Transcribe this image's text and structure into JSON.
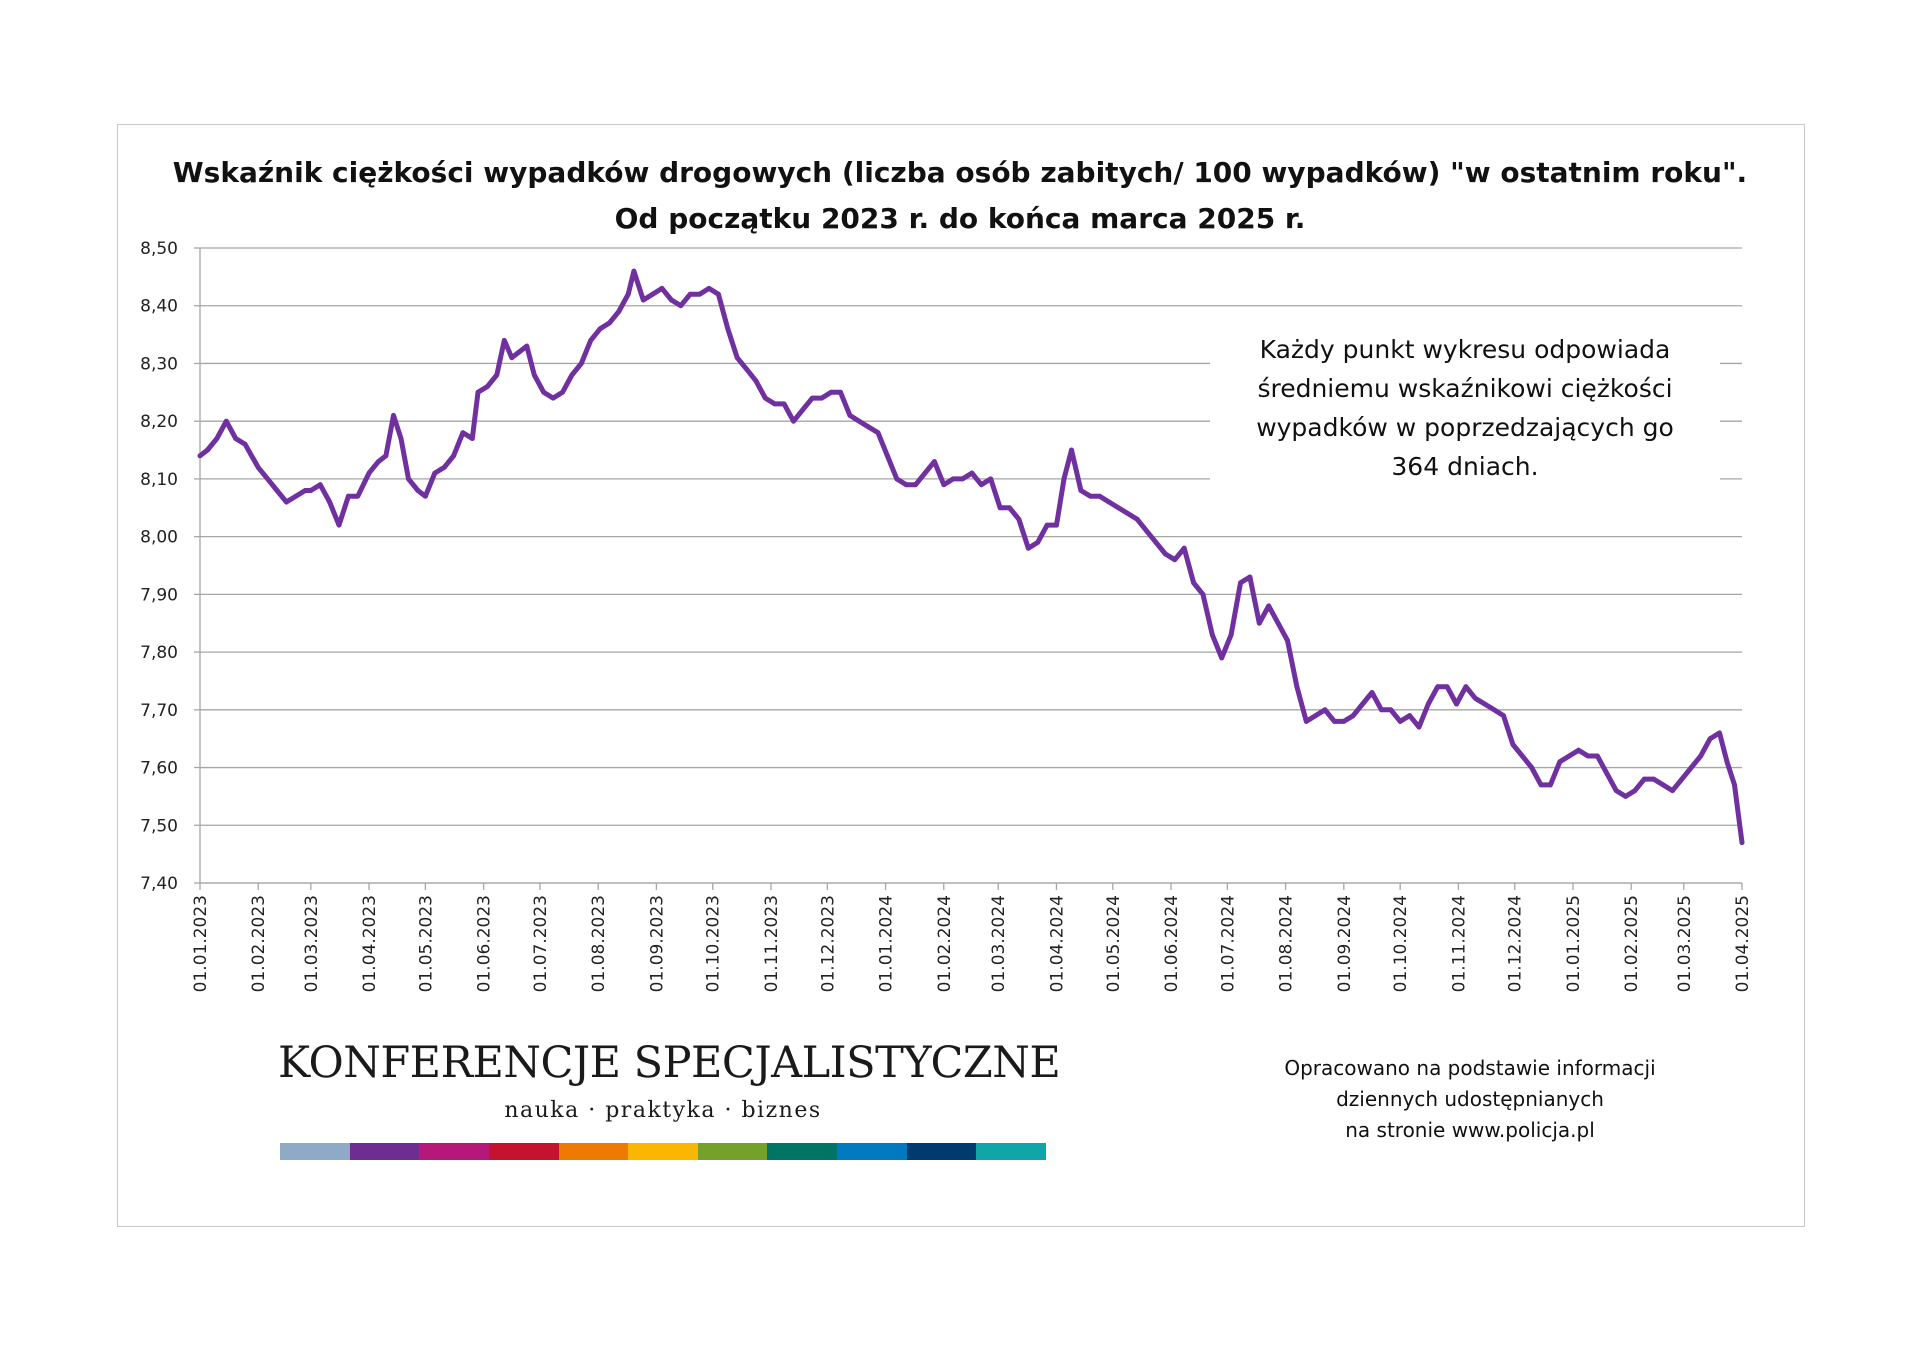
{
  "chart_data": {
    "type": "line",
    "title": "Wskaźnik ciężkości wypadków drogowych (liczba osób zabitych/ 100 wypadków) \"w ostatnim roku\".",
    "subtitle": "Od początku 2023 r. do końca marca 2025 r.",
    "xlabel": "",
    "ylabel": "",
    "ylim": [
      7.4,
      8.5
    ],
    "y_ticks": [
      "8,50",
      "8,40",
      "8,30",
      "8,20",
      "8,10",
      "8,00",
      "7,90",
      "7,80",
      "7,70",
      "7,60",
      "7,50",
      "7,40"
    ],
    "x_ticks": [
      "01.01.2023",
      "01.02.2023",
      "01.03.2023",
      "01.04.2023",
      "01.05.2023",
      "01.06.2023",
      "01.07.2023",
      "01.08.2023",
      "01.09.2023",
      "01.10.2023",
      "01.11.2023",
      "01.12.2023",
      "01.01.2024",
      "01.02.2024",
      "01.03.2024",
      "01.04.2024",
      "01.05.2024",
      "01.06.2024",
      "01.07.2024",
      "01.08.2024",
      "01.09.2024",
      "01.10.2024",
      "01.11.2024",
      "01.12.2024",
      "01.01.2025",
      "01.02.2025",
      "01.03.2025",
      "01.04.2025"
    ],
    "grid": true,
    "legend": "none",
    "series": [
      {
        "color": "#7030a0",
        "points": [
          [
            "01.01.2023",
            8.14
          ],
          [
            "05.01.2023",
            8.15
          ],
          [
            "10.01.2023",
            8.17
          ],
          [
            "15.01.2023",
            8.2
          ],
          [
            "20.01.2023",
            8.17
          ],
          [
            "25.01.2023",
            8.16
          ],
          [
            "01.02.2023",
            8.12
          ],
          [
            "06.02.2023",
            8.1
          ],
          [
            "11.02.2023",
            8.08
          ],
          [
            "16.02.2023",
            8.06
          ],
          [
            "21.02.2023",
            8.07
          ],
          [
            "26.02.2023",
            8.08
          ],
          [
            "01.03.2023",
            8.08
          ],
          [
            "06.03.2023",
            8.09
          ],
          [
            "11.03.2023",
            8.06
          ],
          [
            "16.03.2023",
            8.02
          ],
          [
            "21.03.2023",
            8.07
          ],
          [
            "26.03.2023",
            8.07
          ],
          [
            "01.04.2023",
            8.11
          ],
          [
            "06.04.2023",
            8.13
          ],
          [
            "10.04.2023",
            8.14
          ],
          [
            "14.04.2023",
            8.21
          ],
          [
            "18.04.2023",
            8.17
          ],
          [
            "22.04.2023",
            8.1
          ],
          [
            "27.04.2023",
            8.08
          ],
          [
            "01.05.2023",
            8.07
          ],
          [
            "06.05.2023",
            8.11
          ],
          [
            "11.05.2023",
            8.12
          ],
          [
            "16.05.2023",
            8.14
          ],
          [
            "21.05.2023",
            8.18
          ],
          [
            "26.05.2023",
            8.17
          ],
          [
            "29.05.2023",
            8.25
          ],
          [
            "03.06.2023",
            8.26
          ],
          [
            "08.06.2023",
            8.28
          ],
          [
            "12.06.2023",
            8.34
          ],
          [
            "16.06.2023",
            8.31
          ],
          [
            "20.06.2023",
            8.32
          ],
          [
            "24.06.2023",
            8.33
          ],
          [
            "28.06.2023",
            8.28
          ],
          [
            "03.07.2023",
            8.25
          ],
          [
            "08.07.2023",
            8.24
          ],
          [
            "13.07.2023",
            8.25
          ],
          [
            "18.07.2023",
            8.28
          ],
          [
            "23.07.2023",
            8.3
          ],
          [
            "28.07.2023",
            8.34
          ],
          [
            "02.08.2023",
            8.36
          ],
          [
            "07.08.2023",
            8.37
          ],
          [
            "12.08.2023",
            8.39
          ],
          [
            "17.08.2023",
            8.42
          ],
          [
            "20.08.2023",
            8.46
          ],
          [
            "25.08.2023",
            8.41
          ],
          [
            "30.08.2023",
            8.42
          ],
          [
            "04.09.2023",
            8.43
          ],
          [
            "09.09.2023",
            8.41
          ],
          [
            "14.09.2023",
            8.4
          ],
          [
            "19.09.2023",
            8.42
          ],
          [
            "24.09.2023",
            8.42
          ],
          [
            "29.09.2023",
            8.43
          ],
          [
            "04.10.2023",
            8.42
          ],
          [
            "09.10.2023",
            8.36
          ],
          [
            "14.10.2023",
            8.31
          ],
          [
            "19.10.2023",
            8.29
          ],
          [
            "24.10.2023",
            8.27
          ],
          [
            "29.10.2023",
            8.24
          ],
          [
            "03.11.2023",
            8.23
          ],
          [
            "08.11.2023",
            8.23
          ],
          [
            "13.11.2023",
            8.2
          ],
          [
            "18.11.2023",
            8.22
          ],
          [
            "23.11.2023",
            8.24
          ],
          [
            "28.11.2023",
            8.24
          ],
          [
            "03.12.2023",
            8.25
          ],
          [
            "08.12.2023",
            8.25
          ],
          [
            "13.12.2023",
            8.21
          ],
          [
            "18.12.2023",
            8.2
          ],
          [
            "23.12.2023",
            8.19
          ],
          [
            "28.12.2023",
            8.18
          ],
          [
            "02.01.2024",
            8.14
          ],
          [
            "07.01.2024",
            8.1
          ],
          [
            "12.01.2024",
            8.09
          ],
          [
            "17.01.2024",
            8.09
          ],
          [
            "22.01.2024",
            8.11
          ],
          [
            "27.01.2024",
            8.13
          ],
          [
            "01.02.2024",
            8.09
          ],
          [
            "06.02.2024",
            8.1
          ],
          [
            "11.02.2024",
            8.1
          ],
          [
            "16.02.2024",
            8.11
          ],
          [
            "21.02.2024",
            8.09
          ],
          [
            "26.02.2024",
            8.1
          ],
          [
            "02.03.2024",
            8.05
          ],
          [
            "07.03.2024",
            8.05
          ],
          [
            "12.03.2024",
            8.03
          ],
          [
            "17.03.2024",
            7.98
          ],
          [
            "22.03.2024",
            7.99
          ],
          [
            "27.03.2024",
            8.02
          ],
          [
            "01.04.2024",
            8.02
          ],
          [
            "05.04.2024",
            8.1
          ],
          [
            "09.04.2024",
            8.15
          ],
          [
            "14.04.2024",
            8.08
          ],
          [
            "19.04.2024",
            8.07
          ],
          [
            "24.04.2024",
            8.07
          ],
          [
            "29.04.2024",
            8.06
          ],
          [
            "04.05.2024",
            8.05
          ],
          [
            "09.05.2024",
            8.04
          ],
          [
            "14.05.2024",
            8.03
          ],
          [
            "19.05.2024",
            8.01
          ],
          [
            "24.05.2024",
            7.99
          ],
          [
            "29.05.2024",
            7.97
          ],
          [
            "03.06.2024",
            7.96
          ],
          [
            "08.06.2024",
            7.98
          ],
          [
            "13.06.2024",
            7.92
          ],
          [
            "18.06.2024",
            7.9
          ],
          [
            "23.06.2024",
            7.83
          ],
          [
            "28.06.2024",
            7.79
          ],
          [
            "03.07.2024",
            7.83
          ],
          [
            "08.07.2024",
            7.92
          ],
          [
            "13.07.2024",
            7.93
          ],
          [
            "18.07.2024",
            7.85
          ],
          [
            "23.07.2024",
            7.88
          ],
          [
            "28.07.2024",
            7.85
          ],
          [
            "02.08.2024",
            7.82
          ],
          [
            "07.08.2024",
            7.74
          ],
          [
            "12.08.2024",
            7.68
          ],
          [
            "17.08.2024",
            7.69
          ],
          [
            "22.08.2024",
            7.7
          ],
          [
            "27.08.2024",
            7.68
          ],
          [
            "01.09.2024",
            7.68
          ],
          [
            "06.09.2024",
            7.69
          ],
          [
            "11.09.2024",
            7.71
          ],
          [
            "16.09.2024",
            7.73
          ],
          [
            "21.09.2024",
            7.7
          ],
          [
            "26.09.2024",
            7.7
          ],
          [
            "01.10.2024",
            7.68
          ],
          [
            "06.10.2024",
            7.69
          ],
          [
            "11.10.2024",
            7.67
          ],
          [
            "16.10.2024",
            7.71
          ],
          [
            "21.10.2024",
            7.74
          ],
          [
            "26.10.2024",
            7.74
          ],
          [
            "31.10.2024",
            7.71
          ],
          [
            "05.11.2024",
            7.74
          ],
          [
            "10.11.2024",
            7.72
          ],
          [
            "15.11.2024",
            7.71
          ],
          [
            "20.11.2024",
            7.7
          ],
          [
            "25.11.2024",
            7.69
          ],
          [
            "30.11.2024",
            7.64
          ],
          [
            "05.12.2024",
            7.62
          ],
          [
            "10.12.2024",
            7.6
          ],
          [
            "15.12.2024",
            7.57
          ],
          [
            "20.12.2024",
            7.57
          ],
          [
            "25.12.2024",
            7.61
          ],
          [
            "30.12.2024",
            7.62
          ],
          [
            "04.01.2025",
            7.63
          ],
          [
            "09.01.2025",
            7.62
          ],
          [
            "14.01.2025",
            7.62
          ],
          [
            "19.01.2025",
            7.59
          ],
          [
            "24.01.2025",
            7.56
          ],
          [
            "29.01.2025",
            7.55
          ],
          [
            "03.02.2025",
            7.56
          ],
          [
            "08.02.2025",
            7.58
          ],
          [
            "13.02.2025",
            7.58
          ],
          [
            "18.02.2025",
            7.57
          ],
          [
            "23.02.2025",
            7.56
          ],
          [
            "28.02.2025",
            7.58
          ],
          [
            "05.03.2025",
            7.6
          ],
          [
            "10.03.2025",
            7.62
          ],
          [
            "15.03.2025",
            7.65
          ],
          [
            "20.03.2025",
            7.66
          ],
          [
            "24.03.2025",
            7.61
          ],
          [
            "28.03.2025",
            7.57
          ],
          [
            "01.04.2025",
            7.47
          ]
        ]
      }
    ]
  },
  "annotation": {
    "lines": [
      "Każdy punkt wykresu odpowiada",
      "średniemu wskaźnikowi ciężkości",
      "wypadków w poprzedzających go",
      "364 dniach."
    ]
  },
  "logo": {
    "name": "KONFERENCJE SPECJALISTYCZNE",
    "tagline": "nauka · praktyka · biznes",
    "bar_colors": [
      "#8eaac6",
      "#6f2c91",
      "#b5177b",
      "#c4122f",
      "#ee7b00",
      "#fbb600",
      "#73a12a",
      "#007566",
      "#0079c1",
      "#003b6f",
      "#0ea6a8"
    ]
  },
  "source": {
    "lines": [
      "Opracowano na podstawie informacji",
      "dziennych udostępnianych",
      "na stronie www.policja.pl"
    ]
  }
}
